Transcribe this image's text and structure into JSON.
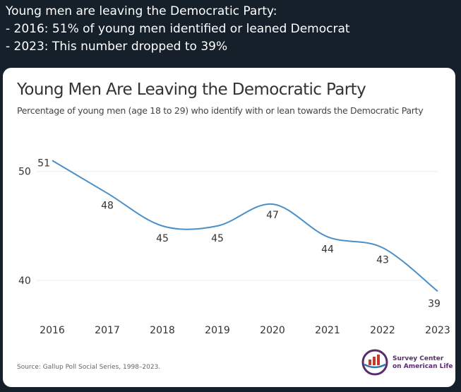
{
  "tweet": {
    "lines": [
      "Young men are leaving the Democratic Party:",
      "- 2016: 51% of young men identified or leaned Democrat",
      "- 2023: This number dropped to 39%"
    ]
  },
  "chart_data": {
    "type": "line",
    "title": "Young Men Are Leaving the Democratic Party",
    "subtitle": "Percentage of young men (age 18 to 29) who identify with or lean towards the Democratic Party",
    "x": [
      "2016",
      "2017",
      "2018",
      "2019",
      "2020",
      "2021",
      "2022",
      "2023"
    ],
    "series": [
      {
        "values": [
          51,
          48,
          45,
          45,
          47,
          44,
          43,
          39
        ],
        "color": "#4a90c8"
      }
    ],
    "y_ticks": [
      "50",
      "40"
    ],
    "ylim": [
      36.5,
      54
    ],
    "xlabel": "",
    "ylabel": "",
    "grid": true,
    "source": "Source: Gallup Poll Social Series, 1998–2023."
  },
  "logo": {
    "line1": "Survey Center",
    "line2": "on American Life",
    "color": "#5a2c6e"
  }
}
